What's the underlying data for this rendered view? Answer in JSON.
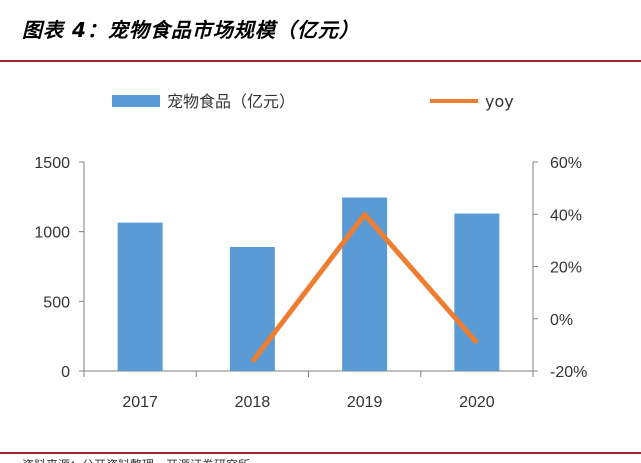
{
  "figure": {
    "title": "图表 4：宠物食品市场规模（亿元）",
    "source": "资料来源：公开资料整理，开源证券研究所"
  },
  "chart_data": {
    "type": "bar",
    "title": "宠物食品市场规模（亿元）",
    "categories": [
      "2017",
      "2018",
      "2019",
      "2020"
    ],
    "series": [
      {
        "name": "宠物食品（亿元）",
        "type": "bar",
        "axis": "left",
        "values": [
          1065,
          890,
          1245,
          1130
        ],
        "color": "#5b9bd5"
      },
      {
        "name": "yoy",
        "type": "line",
        "axis": "right",
        "values": [
          null,
          -16.4,
          39.9,
          -9.2
        ],
        "color": "#ed7d31"
      }
    ],
    "y_left": {
      "min": 0,
      "max": 1500,
      "ticks": [
        0,
        500,
        1000,
        1500
      ],
      "tick_labels": [
        "0",
        "500",
        "1000",
        "1500"
      ]
    },
    "y_right": {
      "min": -20,
      "max": 60,
      "ticks": [
        -20,
        0,
        20,
        40,
        60
      ],
      "tick_labels": [
        "-20%",
        "0%",
        "20%",
        "40%",
        "60%"
      ]
    },
    "legend": {
      "position": "top",
      "labels": [
        "宠物食品（亿元）",
        "yoy"
      ]
    },
    "grid": false
  }
}
